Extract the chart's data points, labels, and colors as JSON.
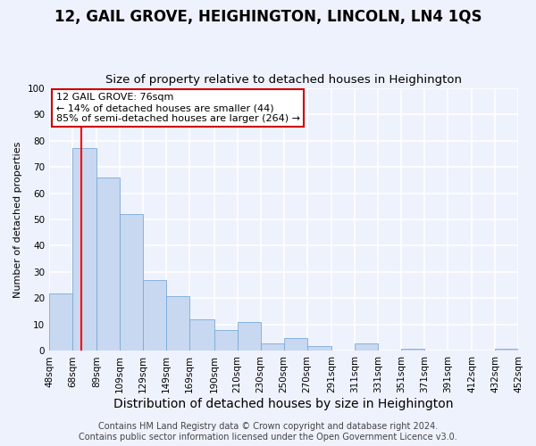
{
  "title": "12, GAIL GROVE, HEIGHINGTON, LINCOLN, LN4 1QS",
  "subtitle": "Size of property relative to detached houses in Heighington",
  "xlabel": "Distribution of detached houses by size in Heighington",
  "ylabel": "Number of detached properties",
  "bin_labels": [
    "48sqm",
    "68sqm",
    "89sqm",
    "109sqm",
    "129sqm",
    "149sqm",
    "169sqm",
    "190sqm",
    "210sqm",
    "230sqm",
    "250sqm",
    "270sqm",
    "291sqm",
    "311sqm",
    "331sqm",
    "351sqm",
    "371sqm",
    "391sqm",
    "412sqm",
    "432sqm",
    "452sqm"
  ],
  "bin_edges": [
    48,
    68,
    89,
    109,
    129,
    149,
    169,
    190,
    210,
    230,
    250,
    270,
    291,
    311,
    331,
    351,
    371,
    391,
    412,
    432,
    452
  ],
  "bar_heights": [
    22,
    77,
    66,
    52,
    27,
    21,
    12,
    8,
    11,
    3,
    5,
    2,
    0,
    3,
    0,
    1,
    0,
    0,
    0,
    1,
    0
  ],
  "bar_color": "#c8d8f0",
  "bar_edgecolor": "#7aaad8",
  "red_line_x": 76,
  "annotation_line1": "12 GAIL GROVE: 76sqm",
  "annotation_line2": "← 14% of detached houses are smaller (44)",
  "annotation_line3": "85% of semi-detached houses are larger (264) →",
  "annotation_box_color": "#ffffff",
  "annotation_box_edgecolor": "#cc0000",
  "ylim": [
    0,
    100
  ],
  "yticks": [
    0,
    10,
    20,
    30,
    40,
    50,
    60,
    70,
    80,
    90,
    100
  ],
  "footer_line1": "Contains HM Land Registry data © Crown copyright and database right 2024.",
  "footer_line2": "Contains public sector information licensed under the Open Government Licence v3.0.",
  "background_color": "#eef2fc",
  "grid_color": "#ffffff",
  "title_fontsize": 12,
  "subtitle_fontsize": 9.5,
  "xlabel_fontsize": 10,
  "ylabel_fontsize": 8,
  "tick_fontsize": 7.5,
  "annotation_fontsize": 8,
  "footer_fontsize": 7
}
